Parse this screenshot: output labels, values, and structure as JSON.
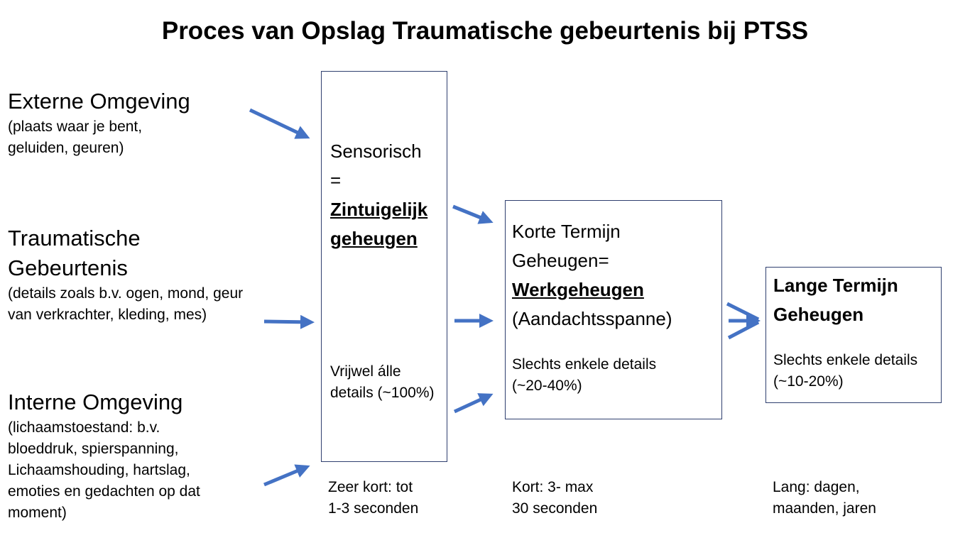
{
  "title": "Proces van Opslag Traumatische gebeurtenis bij PTSS",
  "colors": {
    "arrow": "#4472c4",
    "box_border": "#2f3f6f"
  },
  "inputs": [
    {
      "heading": "Externe Omgeving",
      "lines": [
        "(plaats waar je bent,",
        "geluiden, geuren)"
      ]
    },
    {
      "heading": [
        "Traumatische",
        "Gebeurtenis"
      ],
      "lines": [
        "(details zoals b.v. ogen, mond, geur",
        "van verkrachter, kleding, mes)"
      ]
    },
    {
      "heading": "Interne Omgeving",
      "lines": [
        "(lichaamstoestand: b.v.",
        "bloeddruk, spierspanning,",
        "Lichaamshouding, hartslag,",
        "emoties en gedachten op dat",
        "moment)"
      ]
    }
  ],
  "boxes": {
    "sensory": {
      "line1": "Sensorisch",
      "line2": "=",
      "bold1": "Zintuigelijk",
      "bold2": "geheugen",
      "detail1": "Vrijwel álle",
      "detail2": "details (~100%)",
      "duration1": "Zeer kort: tot",
      "duration2": "1-3 seconden"
    },
    "short_term": {
      "line1": "Korte Termijn",
      "line2": "Geheugen=",
      "bold": "Werkgeheugen",
      "line3": "(Aandachtsspanne)",
      "detail1": "Slechts enkele details",
      "detail2": "(~20-40%)",
      "duration1": "Kort: 3- max",
      "duration2": "30 seconden"
    },
    "long_term": {
      "bold1": "Lange Termijn",
      "bold2": "Geheugen",
      "detail1": "Slechts enkele details",
      "detail2": "(~10-20%)",
      "duration1": "Lang: dagen,",
      "duration2": "maanden, jaren"
    }
  }
}
